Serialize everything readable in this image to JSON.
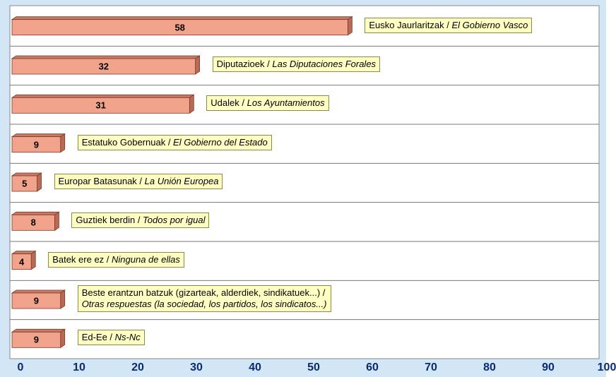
{
  "chart_data": {
    "type": "bar",
    "orientation": "horizontal",
    "categories": [
      "Eusko Jaurlaritzak / El Gobierno Vasco",
      "Diputazioek / Las Diputaciones Forales",
      "Udalek / Los Ayuntamientos",
      "Estatuko Gobernuak / El Gobierno del Estado",
      "Europar Batasunak / La Unión Europea",
      "Guztiek berdin / Todos por igual",
      "Batek ere ez / Ninguna de ellas",
      "Beste erantzun batzuk (gizarteak, alderdiek, sindikatuek...) / Otras respuestas (la sociedad, los partidos, los sindicatos...)",
      "Ed-Ee / Ns-Nc"
    ],
    "values": [
      58,
      32,
      31,
      9,
      5,
      8,
      4,
      9,
      9
    ],
    "color": "#f2a38b",
    "xlim": [
      0,
      100
    ],
    "xticks": [
      0,
      10,
      20,
      30,
      40,
      50,
      60,
      70,
      80,
      90,
      100
    ]
  }
}
